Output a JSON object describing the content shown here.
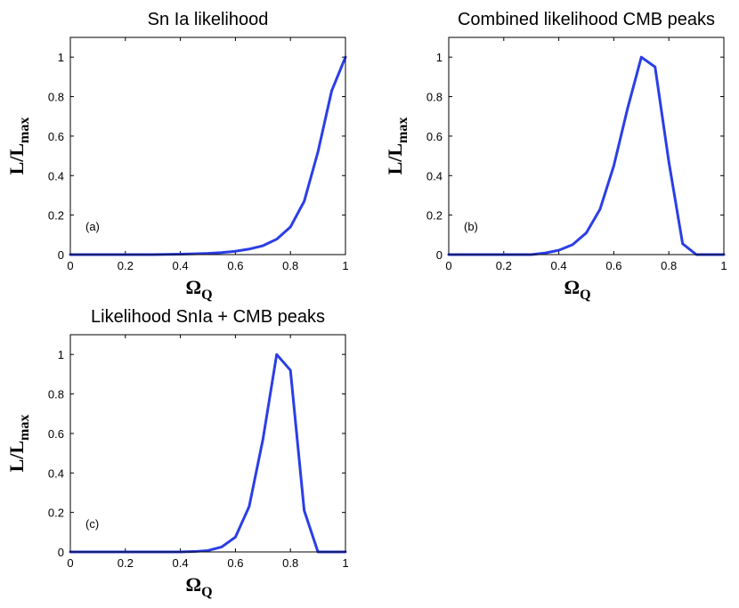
{
  "colors": {
    "line": "#2b3ee6",
    "axis": "#000000",
    "background": "#ffffff"
  },
  "chart_data": [
    {
      "type": "line",
      "title": "Sn Ia likelihood",
      "panel_label": "(a)",
      "xlabel_main": "Ω",
      "xlabel_sub": "Q",
      "ylabel_main": "L/L",
      "ylabel_sub": "max",
      "xlim": [
        0,
        1
      ],
      "ylim": [
        0,
        1.1
      ],
      "xticks": [
        0,
        0.2,
        0.4,
        0.6,
        0.8,
        1
      ],
      "xtick_labels": [
        "0",
        "0.2",
        "0.4",
        "0.6",
        "0.8",
        "1"
      ],
      "yticks": [
        0,
        0.2,
        0.4,
        0.6,
        0.8,
        1
      ],
      "ytick_labels": [
        "0",
        "0.2",
        "0.4",
        "0.6",
        "0.8",
        "1"
      ],
      "x": [
        0,
        0.1,
        0.2,
        0.3,
        0.4,
        0.45,
        0.5,
        0.55,
        0.6,
        0.65,
        0.7,
        0.75,
        0.8,
        0.85,
        0.9,
        0.95,
        1.0
      ],
      "y": [
        0,
        0,
        0,
        0,
        0.002,
        0.004,
        0.006,
        0.01,
        0.017,
        0.028,
        0.045,
        0.078,
        0.14,
        0.27,
        0.52,
        0.83,
        1.0
      ]
    },
    {
      "type": "line",
      "title": "Combined likelihood CMB peaks",
      "panel_label": "(b)",
      "xlabel_main": "Ω",
      "xlabel_sub": "Q",
      "ylabel_main": "L/L",
      "ylabel_sub": "max",
      "xlim": [
        0,
        1
      ],
      "ylim": [
        0,
        1.1
      ],
      "xticks": [
        0,
        0.2,
        0.4,
        0.6,
        0.8,
        1
      ],
      "xtick_labels": [
        "0",
        "0.2",
        "0.4",
        "0.6",
        "0.8",
        "1"
      ],
      "yticks": [
        0,
        0.2,
        0.4,
        0.6,
        0.8,
        1
      ],
      "ytick_labels": [
        "0",
        "0.2",
        "0.4",
        "0.6",
        "0.8",
        "1"
      ],
      "x": [
        0,
        0.1,
        0.2,
        0.3,
        0.35,
        0.4,
        0.45,
        0.5,
        0.55,
        0.6,
        0.65,
        0.7,
        0.75,
        0.8,
        0.85,
        0.9,
        0.95,
        1.0
      ],
      "y": [
        0,
        0,
        0,
        0,
        0.008,
        0.022,
        0.05,
        0.11,
        0.23,
        0.45,
        0.74,
        1.0,
        0.95,
        0.47,
        0.055,
        0,
        0,
        0
      ]
    },
    {
      "type": "line",
      "title": "Likelihood SnIa + CMB peaks",
      "panel_label": "(c)",
      "xlabel_main": "Ω",
      "xlabel_sub": "Q",
      "ylabel_main": "L/L",
      "ylabel_sub": "max",
      "xlim": [
        0,
        1
      ],
      "ylim": [
        0,
        1.1
      ],
      "xticks": [
        0,
        0.2,
        0.4,
        0.6,
        0.8,
        1
      ],
      "xtick_labels": [
        "0",
        "0.2",
        "0.4",
        "0.6",
        "0.8",
        "1"
      ],
      "yticks": [
        0,
        0.2,
        0.4,
        0.6,
        0.8,
        1
      ],
      "ytick_labels": [
        "0",
        "0.2",
        "0.4",
        "0.6",
        "0.8",
        "1"
      ],
      "x": [
        0,
        0.1,
        0.2,
        0.3,
        0.4,
        0.45,
        0.5,
        0.55,
        0.6,
        0.65,
        0.7,
        0.75,
        0.8,
        0.85,
        0.9,
        0.95,
        1.0
      ],
      "y": [
        0,
        0,
        0,
        0,
        0,
        0.002,
        0.007,
        0.025,
        0.075,
        0.23,
        0.57,
        1.0,
        0.92,
        0.21,
        0,
        0,
        0
      ]
    }
  ]
}
